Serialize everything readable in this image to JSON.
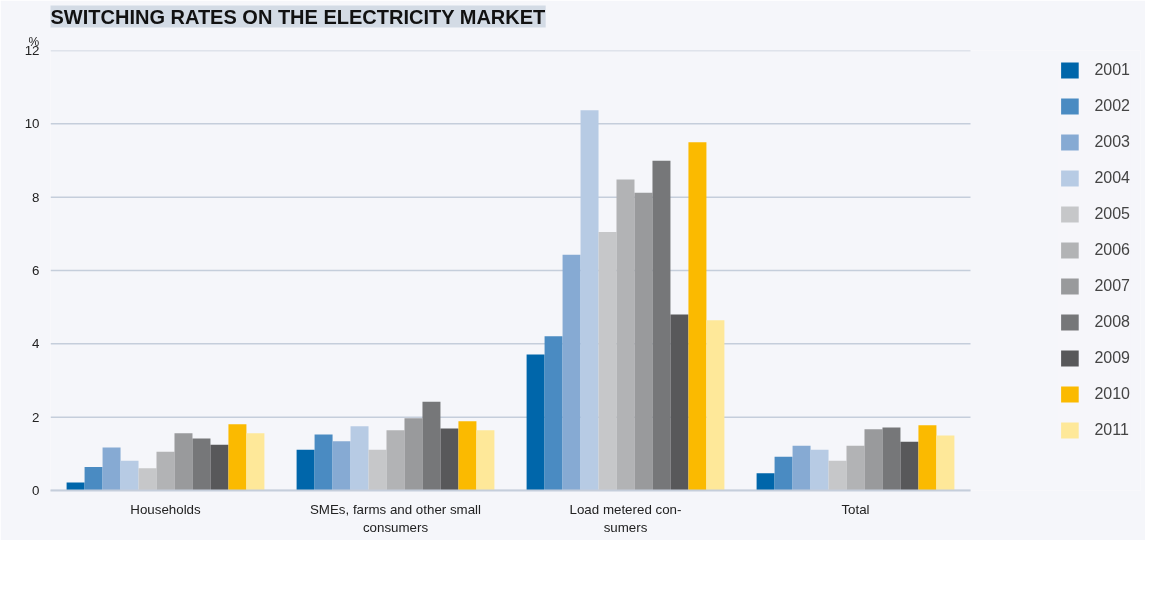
{
  "chart_data": {
    "type": "bar",
    "title": "SWITCHING RATES ON THE ELECTRICITY MARKET",
    "ylabel": "%",
    "categories": [
      "Households",
      "SMEs, farms and other small\nconsumers",
      "Load metered con-\nsumers",
      "Total"
    ],
    "series": [
      {
        "name": "2001",
        "color": "#0066aa",
        "values": [
          0.22,
          1.11,
          3.71,
          0.47
        ]
      },
      {
        "name": "2002",
        "color": "#4a8bc2",
        "values": [
          0.64,
          1.53,
          4.21,
          0.92
        ]
      },
      {
        "name": "2003",
        "color": "#86aad3",
        "values": [
          1.17,
          1.34,
          6.43,
          1.22
        ]
      },
      {
        "name": "2004",
        "color": "#b7cbe4",
        "values": [
          0.81,
          1.75,
          10.37,
          1.11
        ]
      },
      {
        "name": "2005",
        "color": "#c6c7c9",
        "values": [
          0.61,
          1.11,
          7.05,
          0.81
        ]
      },
      {
        "name": "2006",
        "color": "#b2b3b5",
        "values": [
          1.06,
          1.64,
          8.48,
          1.22
        ]
      },
      {
        "name": "2007",
        "color": "#999a9c",
        "values": [
          1.56,
          1.97,
          8.12,
          1.67
        ]
      },
      {
        "name": "2008",
        "color": "#767779",
        "values": [
          1.42,
          2.42,
          8.99,
          1.72
        ]
      },
      {
        "name": "2009",
        "color": "#58585a",
        "values": [
          1.25,
          1.69,
          4.8,
          1.33
        ]
      },
      {
        "name": "2010",
        "color": "#fbba00",
        "values": [
          1.81,
          1.89,
          9.5,
          1.78
        ]
      },
      {
        "name": "2011",
        "color": "#fee899",
        "values": [
          1.56,
          1.64,
          4.64,
          1.5
        ]
      }
    ],
    "ylim": [
      0,
      12
    ],
    "yticks": [
      0,
      2,
      4,
      6,
      8,
      10,
      12
    ],
    "grid": "y",
    "legend": "right"
  }
}
